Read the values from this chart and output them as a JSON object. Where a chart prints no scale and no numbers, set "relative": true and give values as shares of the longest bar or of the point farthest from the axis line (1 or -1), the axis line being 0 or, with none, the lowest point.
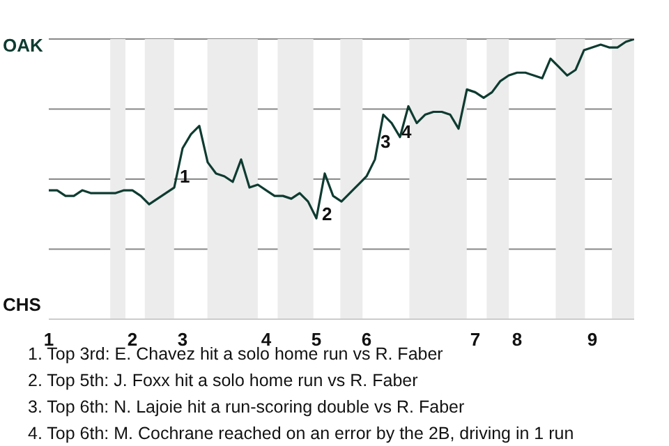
{
  "chart_data": {
    "type": "line",
    "relative": true,
    "categories": [
      "1",
      null,
      null,
      null,
      null,
      null,
      null,
      null,
      null,
      null,
      "2",
      null,
      null,
      null,
      null,
      null,
      "3",
      null,
      null,
      null,
      null,
      null,
      null,
      null,
      null,
      null,
      "4",
      null,
      null,
      null,
      null,
      null,
      "5",
      null,
      null,
      null,
      null,
      null,
      "6",
      null,
      null,
      null,
      null,
      null,
      null,
      null,
      null,
      null,
      null,
      null,
      null,
      "7",
      null,
      null,
      null,
      null,
      "8",
      null,
      null,
      null,
      null,
      null,
      null,
      null,
      null,
      "9",
      null,
      null,
      null,
      null,
      null
    ],
    "series": [
      {
        "color": "#0e3b30",
        "values": [
          0.46,
          0.46,
          0.44,
          0.44,
          0.46,
          0.45,
          0.45,
          0.45,
          0.45,
          0.46,
          0.46,
          0.44,
          0.41,
          0.43,
          0.45,
          0.47,
          0.61,
          0.66,
          0.69,
          0.56,
          0.52,
          0.51,
          0.49,
          0.57,
          0.47,
          0.48,
          0.46,
          0.44,
          0.44,
          0.43,
          0.45,
          0.42,
          0.36,
          0.52,
          0.44,
          0.42,
          0.45,
          0.48,
          0.51,
          0.57,
          0.73,
          0.7,
          0.65,
          0.76,
          0.7,
          0.73,
          0.74,
          0.74,
          0.73,
          0.68,
          0.82,
          0.81,
          0.79,
          0.81,
          0.85,
          0.87,
          0.88,
          0.88,
          0.87,
          0.86,
          0.93,
          0.9,
          0.87,
          0.89,
          0.96,
          0.97,
          0.98,
          0.97,
          0.97,
          0.99,
          1
        ]
      }
    ],
    "grid": "y",
    "legend": false,
    "marker": "none",
    "line_style": "solid",
    "annotations": [
      "OAK",
      "CHS",
      "1",
      "2",
      "3",
      "4",
      "1. Top 3rd: E. Chavez hit a solo home run vs R. Faber",
      "2. Top 5th: J. Foxx hit a solo home run vs R. Faber",
      "3. Top 6th: N. Lajoie hit a run-scoring double vs R. Faber",
      "4. Top 6th: M. Cochrane reached on an error by the 2B, driving in 1 run"
    ]
  }
}
